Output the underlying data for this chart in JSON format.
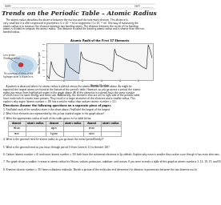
{
  "title": "Trends on the Periodic Table – Atomic Radius",
  "graph_title": "Atomic Radii of the First 57 Elements",
  "graph_xlabel": "Atomic Number",
  "graph_ylabel": "Atomic Radius (pm)",
  "background_color": "#ffffff",
  "text_color": "#000000",
  "header_name": "NAME ___________________________",
  "header_date": "DATE ___________",
  "directions": "Directions: Answer the following questions on a separate piece of paper.",
  "q1": "1. Find/label each of the smallest atom in the chart above. Find/label the largest of the largest.",
  "q2": "2. Which five elements are represented by the yellow shaded region in the graph above?",
  "q3": "3. Write the approximate radius of each of the noble gases in the table below.",
  "table_headers": [
    "element",
    "atomic radius",
    "element",
    "atomic radius",
    "element",
    "atomic radius"
  ],
  "table_row1": [
    "helium",
    "",
    "argon",
    "",
    "xenon",
    ""
  ],
  "table_row2": [
    "neon",
    "",
    "krypton",
    "",
    "radon",
    ""
  ],
  "q4": "4. What is the general trend for atomic radius as you go down the metal (period/family)?",
  "q5": "5. What is the general trend as you move through period 3 (from element 11 to element 18)?",
  "q6": "6. Carbon (atomic number = 6) and neon (atomic number = 10) both have the outermost electrons in 2p orbitals. Explain why neon is smaller than carbon even though it has more electrons.",
  "q7": "7. The graph shows a sudden increase in atomic radius for lithium, sodium, potassium, rubidium, and cesium. If you were to make a table of this graph at atomic numbers 3, 11, 19, 37, and 55,",
  "q8": "8. Bromine (atomic number = 35) forms a diatomic molecule. Sketch a picture of the molecules and determine the distance in picometers between the two bromine nuclei.",
  "body1_lines": [
    "    The atomic radius describes the distance between the nucleus and the outermost electron. This distance is",
    "very small but it is often expressed in picometers (1 x 10⁻¹² m) or angstroms (1 x 10⁻¹° m). One way of measuring the",
    "atomic radius is to measure the distance between two bonding atoms. The distance between the nuclei of the bonding",
    "atoms is divided to compute the atomic radius. This distance is called the bonding atomic radius and is shorter than the non-",
    "bonded radius."
  ],
  "body2_lines": [
    "    A pattern is observed when the atomic radius is plotted versus the atomic number as seen above. As might be",
    "expected the largest atoms are found at the bottom of the periodic table. However, as you go across a period, the atomic",
    "radius decreases from highlighted region in the graph above. All of the elements in a period have the same number",
    "of shells have the same energy and same size. Additionally, the elements that are on the right side of the periodic table",
    "have nuclei which contain more protons. They result in a larger attraction of the electrons and a smaller radius. This",
    "explains why argon (atomic number = 18) has a smaller radius than sodium (atomic number = 11)."
  ],
  "cloud_label1": "Lone proton",
  "cloud_label2": "(Smallest radius)",
  "cloud_label3": "The outermost electron of the",
  "cloud_label4": "hydrogen atom is shown here.",
  "radii": [
    53,
    31,
    167,
    112,
    87,
    67,
    56,
    48,
    42,
    38,
    190,
    145,
    118,
    111,
    98,
    88,
    79,
    71,
    243,
    194,
    184,
    176,
    171,
    166,
    161,
    156,
    152,
    149,
    145,
    142,
    136,
    125,
    114,
    103,
    94,
    88,
    265,
    219,
    212,
    206,
    198,
    190,
    183,
    178,
    173,
    169,
    165,
    161,
    156,
    145,
    133,
    123,
    115,
    108,
    298,
    253,
    195
  ]
}
